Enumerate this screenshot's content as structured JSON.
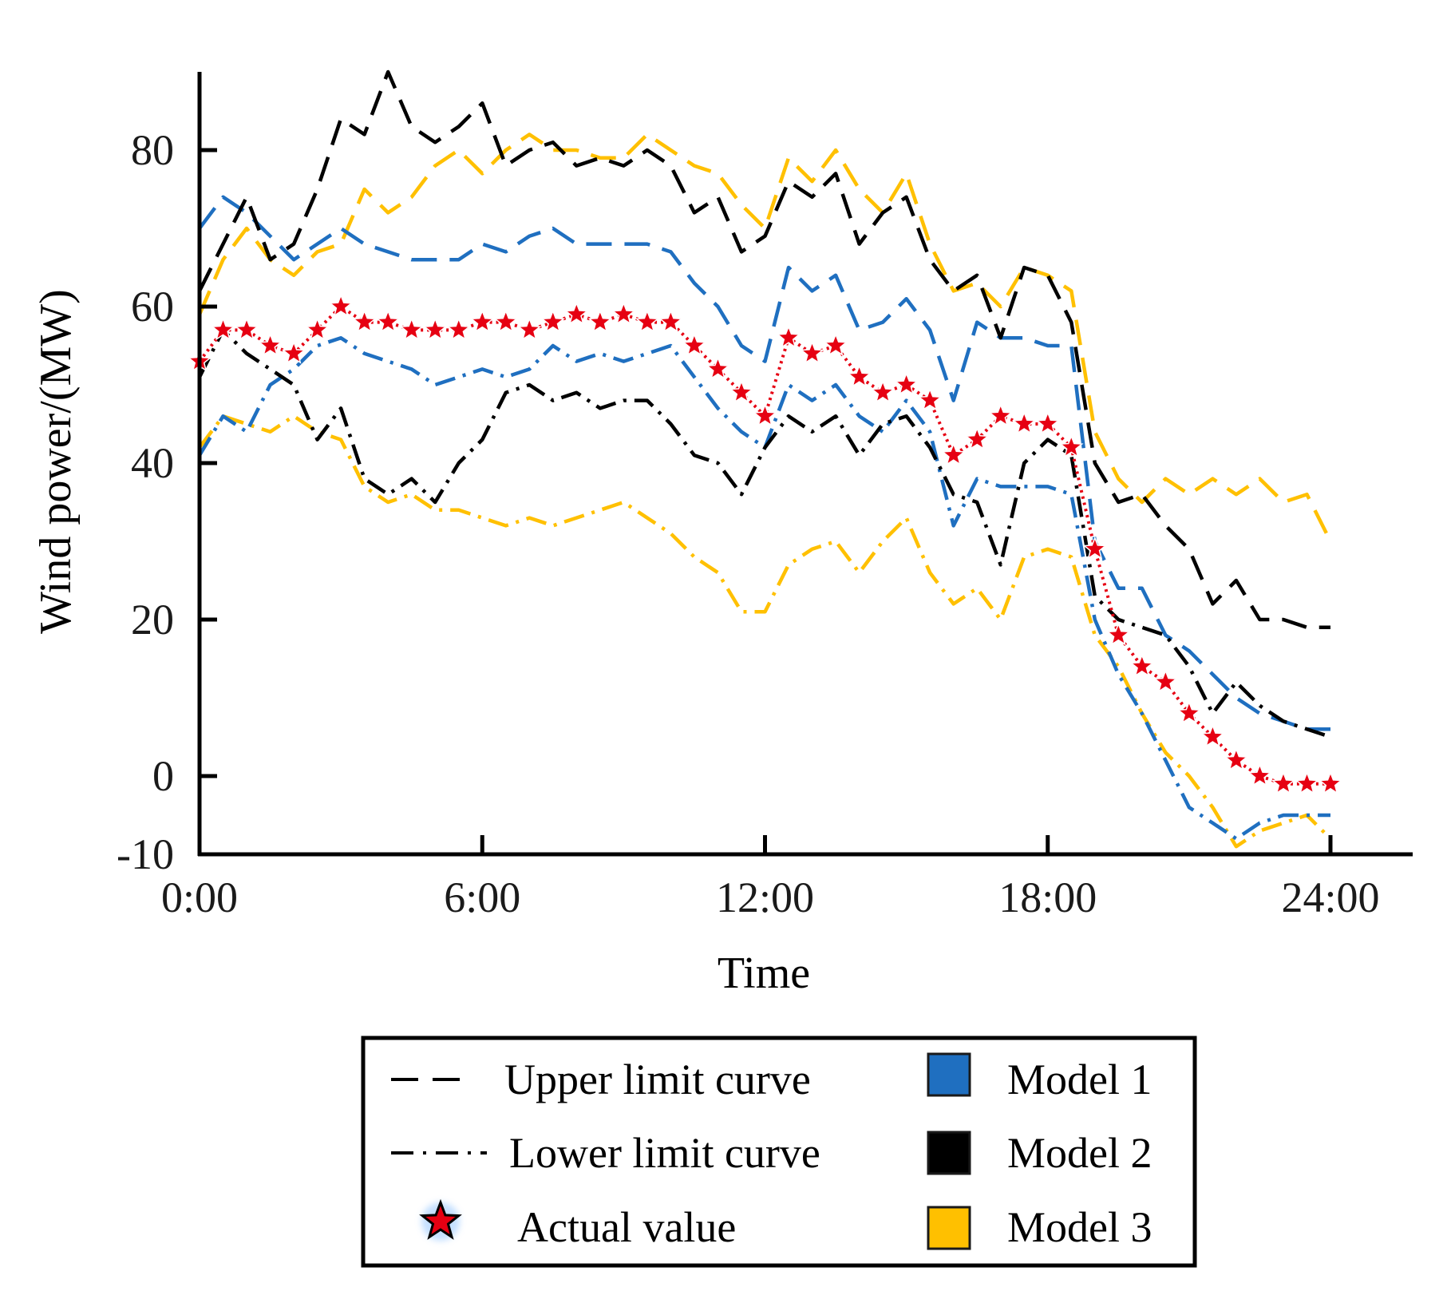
{
  "chart_data": {
    "type": "line",
    "xlabel": "Time",
    "ylabel": "Wind power/(MW)",
    "xlim": [
      0,
      24
    ],
    "ylim": [
      -10,
      90
    ],
    "x_ticks": [
      0,
      6,
      12,
      18,
      24
    ],
    "x_tick_labels": [
      "0:00",
      "6:00",
      "12:00",
      "18:00",
      "24:00"
    ],
    "y_ticks": [
      -10,
      0,
      20,
      40,
      60,
      80
    ],
    "y_tick_labels": [
      "-10",
      "0",
      "20",
      "40",
      "60",
      "80"
    ],
    "grid": false,
    "legend": {
      "position": "bottom-center",
      "line_entries": [
        "Upper limit curve",
        "Lower limit curve",
        "Actual value"
      ],
      "model_entries": [
        "Model 1",
        "Model 2",
        "Model 3"
      ]
    },
    "colors": {
      "model_1": "#1f6fc0",
      "model_2": "#000000",
      "model_3": "#ffc000",
      "actual": "#e60012"
    },
    "x": [
      0,
      0.5,
      1,
      1.5,
      2,
      2.5,
      3,
      3.5,
      4,
      4.5,
      5,
      5.5,
      6,
      6.5,
      7,
      7.5,
      8,
      8.5,
      9,
      9.5,
      10,
      10.5,
      11,
      11.5,
      12,
      12.5,
      13,
      13.5,
      14,
      14.5,
      15,
      15.5,
      16,
      16.5,
      17,
      17.5,
      18,
      18.5,
      19,
      19.5,
      20,
      20.5,
      21,
      21.5,
      22,
      22.5,
      23,
      23.5,
      24
    ],
    "series": [
      {
        "name": "Actual value",
        "style": "actual",
        "model": "Actual",
        "values": [
          53,
          57,
          57,
          55,
          54,
          57,
          60,
          58,
          58,
          57,
          57,
          57,
          58,
          58,
          57,
          58,
          59,
          58,
          59,
          58,
          58,
          55,
          52,
          49,
          46,
          56,
          54,
          55,
          51,
          49,
          50,
          48,
          41,
          43,
          46,
          45,
          45,
          42,
          29,
          18,
          14,
          12,
          8,
          5,
          2,
          0,
          -1,
          -1,
          -1
        ]
      },
      {
        "name": "Model 1 upper limit curve",
        "style": "upper",
        "model": "Model 1",
        "values": [
          70,
          74,
          72,
          69,
          66,
          68,
          70,
          68,
          67,
          66,
          66,
          66,
          68,
          67,
          69,
          70,
          68,
          68,
          68,
          68,
          67,
          63,
          60,
          55,
          53,
          65,
          62,
          64,
          57,
          58,
          61,
          57,
          48,
          58,
          56,
          56,
          55,
          55,
          30,
          24,
          24,
          18,
          16,
          13,
          10,
          8,
          7,
          6,
          6
        ]
      },
      {
        "name": "Model 1 lower limit curve",
        "style": "lower",
        "model": "Model 1",
        "values": [
          41,
          46,
          44,
          50,
          52,
          55,
          56,
          54,
          53,
          52,
          50,
          51,
          52,
          51,
          52,
          55,
          53,
          54,
          53,
          54,
          55,
          51,
          47,
          44,
          42,
          50,
          48,
          50,
          46,
          44,
          48,
          44,
          32,
          38,
          37,
          37,
          37,
          36,
          20,
          13,
          8,
          2,
          -4,
          -6,
          -8,
          -6,
          -5,
          -5,
          -5
        ]
      },
      {
        "name": "Model 2 upper limit curve",
        "style": "upper",
        "model": "Model 2",
        "values": [
          62,
          68,
          74,
          66,
          68,
          75,
          84,
          82,
          90,
          83,
          81,
          83,
          86,
          78,
          80,
          81,
          78,
          79,
          78,
          80,
          78,
          72,
          74,
          67,
          69,
          76,
          74,
          77,
          68,
          72,
          74,
          66,
          62,
          64,
          56,
          65,
          64,
          58,
          40,
          35,
          36,
          32,
          29,
          22,
          25,
          20,
          20,
          19,
          19
        ]
      },
      {
        "name": "Model 2 lower limit curve",
        "style": "lower",
        "model": "Model 2",
        "values": [
          51,
          57,
          54,
          52,
          50,
          43,
          47,
          38,
          36,
          38,
          35,
          40,
          43,
          49,
          50,
          48,
          49,
          47,
          48,
          48,
          45,
          41,
          40,
          36,
          42,
          46,
          44,
          46,
          41,
          45,
          46,
          42,
          36,
          35,
          27,
          40,
          43,
          41,
          23,
          20,
          19,
          18,
          14,
          8,
          12,
          9,
          7,
          6,
          5
        ]
      },
      {
        "name": "Model 3 upper limit curve",
        "style": "upper",
        "model": "Model 3",
        "values": [
          59,
          66,
          70,
          66,
          64,
          67,
          68,
          75,
          72,
          74,
          78,
          80,
          77,
          80,
          82,
          80,
          80,
          79,
          79,
          82,
          80,
          78,
          77,
          73,
          70,
          79,
          76,
          80,
          75,
          72,
          77,
          68,
          62,
          63,
          60,
          65,
          64,
          62,
          44,
          38,
          35,
          38,
          36,
          38,
          36,
          38,
          35,
          36,
          30
        ]
      },
      {
        "name": "Model 3 lower limit curve",
        "style": "lower",
        "model": "Model 3",
        "values": [
          42,
          46,
          45,
          44,
          46,
          44,
          43,
          37,
          35,
          36,
          34,
          34,
          33,
          32,
          33,
          32,
          33,
          34,
          35,
          33,
          31,
          28,
          26,
          21,
          21,
          27,
          29,
          30,
          26,
          30,
          33,
          26,
          22,
          24,
          20,
          28,
          29,
          28,
          18,
          14,
          8,
          3,
          0,
          -4,
          -9,
          -7,
          -6,
          -5,
          -8
        ]
      }
    ]
  }
}
